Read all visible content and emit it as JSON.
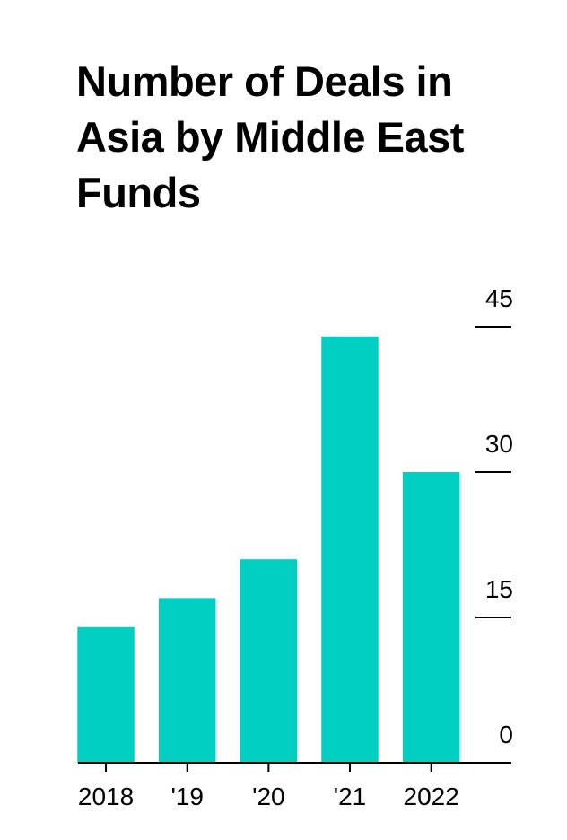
{
  "chart_data": {
    "type": "bar",
    "title": "Number of Deals in Asia by Middle East Funds",
    "categories": [
      "2018",
      "'19",
      "'20",
      "'21",
      "2022"
    ],
    "values": [
      14,
      17,
      21,
      44,
      30
    ],
    "color": "#00cfc1",
    "ylim": [
      0,
      45
    ],
    "yticks": [
      0,
      15,
      30,
      45
    ]
  }
}
